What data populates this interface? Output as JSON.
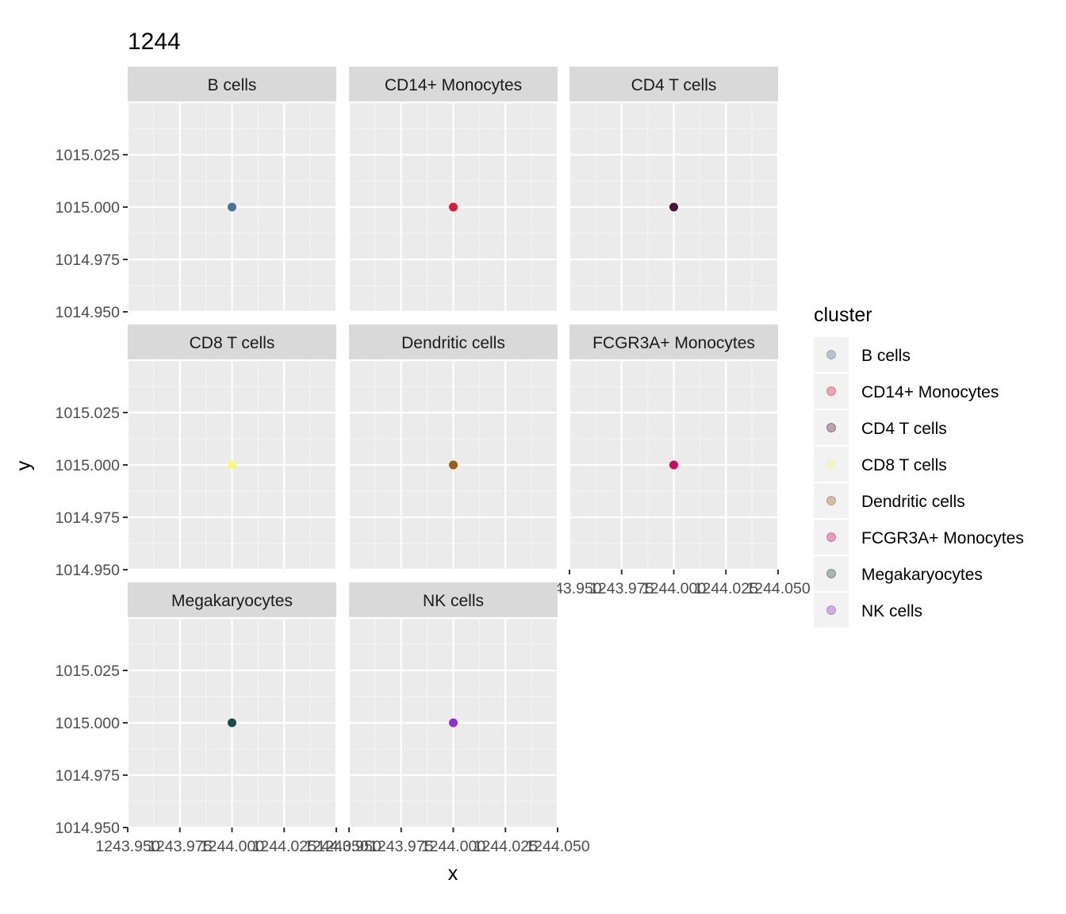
{
  "chart_data": {
    "type": "scatter",
    "title": "1244",
    "xlabel": "x",
    "ylabel": "y",
    "xlim": [
      1243.95,
      1244.05
    ],
    "ylim": [
      1014.95,
      1015.05
    ],
    "x_ticks": [
      1243.95,
      1243.975,
      1244.0,
      1244.025,
      1244.05
    ],
    "x_tick_labels": [
      "1243.950",
      "1243.975",
      "1244.000",
      "1244.025",
      "1244.050"
    ],
    "y_ticks": [
      1014.95,
      1014.975,
      1015.0,
      1015.025
    ],
    "y_tick_labels": [
      "1014.950",
      "1014.975",
      "1015.000",
      "1015.025"
    ],
    "grid": true,
    "facets": [
      {
        "name": "B cells",
        "color": "#4a7396",
        "points": [
          {
            "x": 1244.0,
            "y": 1015.0
          }
        ]
      },
      {
        "name": "CD14+ Monocytes",
        "color": "#d71c3b",
        "points": [
          {
            "x": 1244.0,
            "y": 1015.0
          }
        ]
      },
      {
        "name": "CD4 T cells",
        "color": "#4f1538",
        "points": [
          {
            "x": 1244.0,
            "y": 1015.0
          }
        ]
      },
      {
        "name": "CD8 T cells",
        "color": "#fbf97c",
        "points": [
          {
            "x": 1244.0,
            "y": 1015.0
          }
        ]
      },
      {
        "name": "Dendritic cells",
        "color": "#9a5d13",
        "points": [
          {
            "x": 1244.0,
            "y": 1015.0
          }
        ]
      },
      {
        "name": "FCGR3A+ Monocytes",
        "color": "#cc095f",
        "points": [
          {
            "x": 1244.0,
            "y": 1015.0
          }
        ]
      },
      {
        "name": "Megakaryocytes",
        "color": "#1b4a48",
        "points": [
          {
            "x": 1244.0,
            "y": 1015.0
          }
        ]
      },
      {
        "name": "NK cells",
        "color": "#8b30cc",
        "points": [
          {
            "x": 1244.0,
            "y": 1015.0
          }
        ]
      }
    ],
    "legend": {
      "title": "cluster",
      "position": "right",
      "entries": [
        "B cells",
        "CD14+ Monocytes",
        "CD4 T cells",
        "CD8 T cells",
        "Dendritic cells",
        "FCGR3A+ Monocytes",
        "Megakaryocytes",
        "NK cells"
      ]
    }
  }
}
